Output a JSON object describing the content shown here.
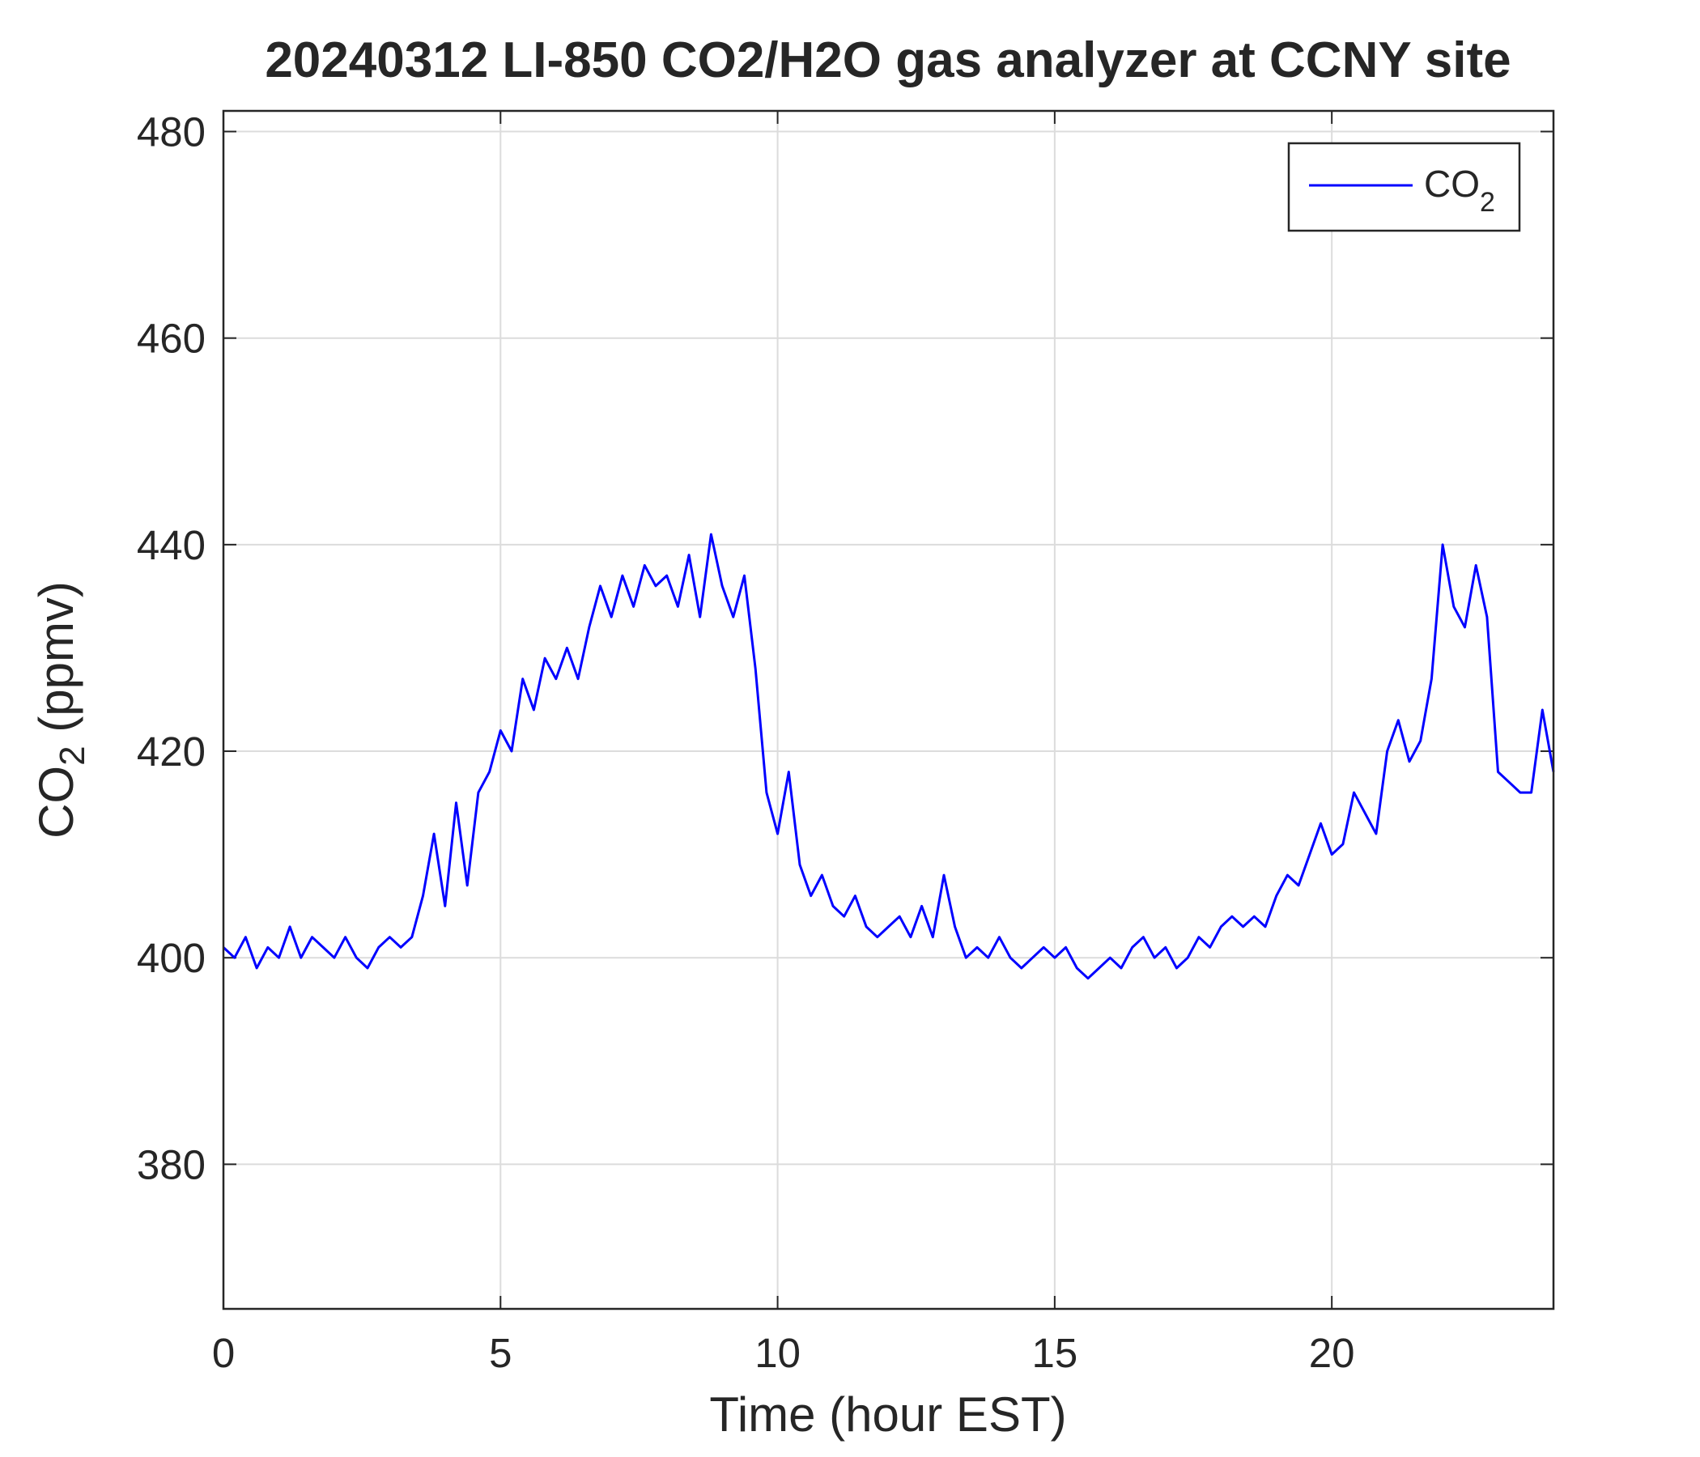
{
  "chart_data": {
    "type": "line",
    "title": "20240312 LI-850 CO2/H2O gas analyzer at CCNY site",
    "xlabel": "Time (hour EST)",
    "ylabel": {
      "text": "CO",
      "sub": "2",
      "rest": " (ppmv)"
    },
    "xlim": [
      0,
      24
    ],
    "xticks": [
      0,
      5,
      10,
      15,
      20
    ],
    "ylim": [
      366,
      482
    ],
    "yticks": [
      380,
      400,
      420,
      440,
      460,
      480
    ],
    "grid": true,
    "legend": "upper right",
    "x": [
      0,
      0.2,
      0.4,
      0.6,
      0.8,
      1,
      1.2,
      1.4,
      1.6,
      1.8,
      2,
      2.2,
      2.4,
      2.6,
      2.8,
      3,
      3.2,
      3.4,
      3.6,
      3.8,
      4,
      4.2,
      4.4,
      4.6,
      4.8,
      5,
      5.2,
      5.4,
      5.6,
      5.8,
      6,
      6.2,
      6.4,
      6.6,
      6.8,
      7,
      7.2,
      7.4,
      7.6,
      7.8,
      8,
      8.2,
      8.4,
      8.6,
      8.8,
      9,
      9.2,
      9.4,
      9.6,
      9.8,
      10,
      10.2,
      10.4,
      10.6,
      10.8,
      11,
      11.2,
      11.4,
      11.6,
      11.8,
      12,
      12.2,
      12.4,
      12.6,
      12.8,
      13,
      13.2,
      13.4,
      13.6,
      13.8,
      14,
      14.2,
      14.4,
      14.6,
      14.8,
      15,
      15.2,
      15.4,
      15.6,
      15.8,
      16,
      16.2,
      16.4,
      16.6,
      16.8,
      17,
      17.2,
      17.4,
      17.6,
      17.8,
      18,
      18.2,
      18.4,
      18.6,
      18.8,
      19,
      19.2,
      19.4,
      19.6,
      19.8,
      20,
      20.2,
      20.4,
      20.6,
      20.8,
      21,
      21.2,
      21.4,
      21.6,
      21.8,
      22,
      22.2,
      22.4,
      22.6,
      22.8,
      23,
      23.2,
      23.4,
      23.6,
      23.8,
      24
    ],
    "series": [
      {
        "name": "CO",
        "name_sub": "2",
        "color": "#0000ff",
        "values": [
          401,
          400,
          402,
          399,
          401,
          400,
          403,
          400,
          402,
          401,
          400,
          402,
          400,
          399,
          401,
          402,
          401,
          402,
          406,
          412,
          405,
          415,
          407,
          416,
          418,
          422,
          420,
          427,
          424,
          429,
          427,
          430,
          427,
          432,
          436,
          433,
          437,
          434,
          438,
          436,
          437,
          434,
          439,
          433,
          441,
          436,
          433,
          437,
          428,
          416,
          412,
          418,
          409,
          406,
          408,
          405,
          404,
          406,
          403,
          402,
          403,
          404,
          402,
          405,
          402,
          408,
          403,
          400,
          401,
          400,
          402,
          400,
          399,
          400,
          401,
          400,
          401,
          399,
          398,
          399,
          400,
          399,
          401,
          402,
          400,
          401,
          399,
          400,
          402,
          401,
          403,
          404,
          403,
          404,
          403,
          406,
          408,
          407,
          410,
          413,
          410,
          411,
          416,
          414,
          412,
          420,
          423,
          419,
          421,
          427,
          440,
          434,
          432,
          438,
          433,
          418,
          417,
          416,
          416,
          424,
          418
        ]
      }
    ]
  }
}
